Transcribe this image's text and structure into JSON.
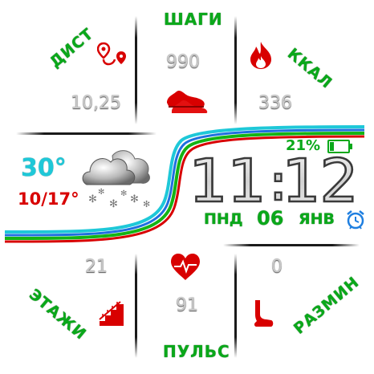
{
  "steps": {
    "label": "ШАГИ",
    "value": "990"
  },
  "distance": {
    "label": "ДИСТ",
    "value": "10,25"
  },
  "calories": {
    "label": "ККАЛ",
    "value": "336"
  },
  "floors": {
    "label": "ЭТАЖИ",
    "value": "21"
  },
  "warmup": {
    "label": "РАЗМИН",
    "value": "0"
  },
  "pulse": {
    "label": "ПУЛЬС",
    "value": "91"
  },
  "weather": {
    "temp": "30°",
    "range": "10/17°",
    "icon": "snow-cloud-icon"
  },
  "battery": {
    "percent_text": "21%",
    "level": 0.21,
    "icon": "battery-icon"
  },
  "clock": {
    "hours": "11",
    "separator": ":",
    "minutes": "12"
  },
  "date": {
    "weekday": "ПНД",
    "day": "06",
    "month": "ЯНВ"
  },
  "alarm": {
    "icon": "alarm-clock-icon"
  },
  "colors": {
    "green": "#0aa81a",
    "red": "#d80000",
    "cyan": "#1ec8d8",
    "blue": "#1f6fe0"
  }
}
